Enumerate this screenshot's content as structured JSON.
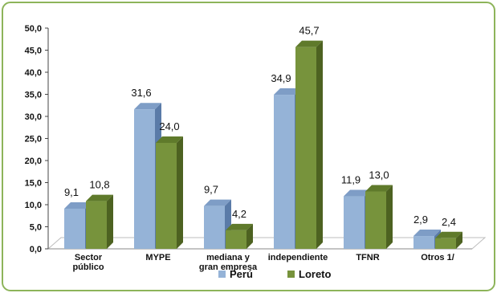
{
  "chart_data": {
    "type": "bar",
    "categories": [
      "Sector\npúblico",
      "MYPE",
      "mediana y\ngran empresa",
      "independiente",
      "TFNR",
      "Otros 1/"
    ],
    "series": [
      {
        "name": "Perú",
        "values": [
          9.1,
          31.6,
          9.7,
          34.9,
          11.9,
          2.9
        ],
        "labels": [
          "9,1",
          "31,6",
          "9,7",
          "34,9",
          "11,9",
          "2,9"
        ]
      },
      {
        "name": "Loreto",
        "values": [
          10.8,
          24.0,
          4.2,
          45.7,
          13.0,
          2.4
        ],
        "labels": [
          "10,8",
          "24,0",
          "4,2",
          "45,7",
          "13,0",
          "2,4"
        ]
      }
    ],
    "ylim": [
      0,
      50
    ],
    "yticks": [
      "0,0",
      "5,0",
      "10,0",
      "15,0",
      "20,0",
      "25,0",
      "30,0",
      "35,0",
      "40,0",
      "45,0",
      "50,0"
    ],
    "legend_position": "bottom",
    "grid": false,
    "colors": {
      "peru_front": "#95B3D7",
      "peru_side": "#5A7BA8",
      "peru_top": "#7E9DC6",
      "loreto_front": "#77933C",
      "loreto_side": "#4D6221",
      "loreto_top": "#5F7A2B",
      "frame": "#8DB45A"
    }
  }
}
